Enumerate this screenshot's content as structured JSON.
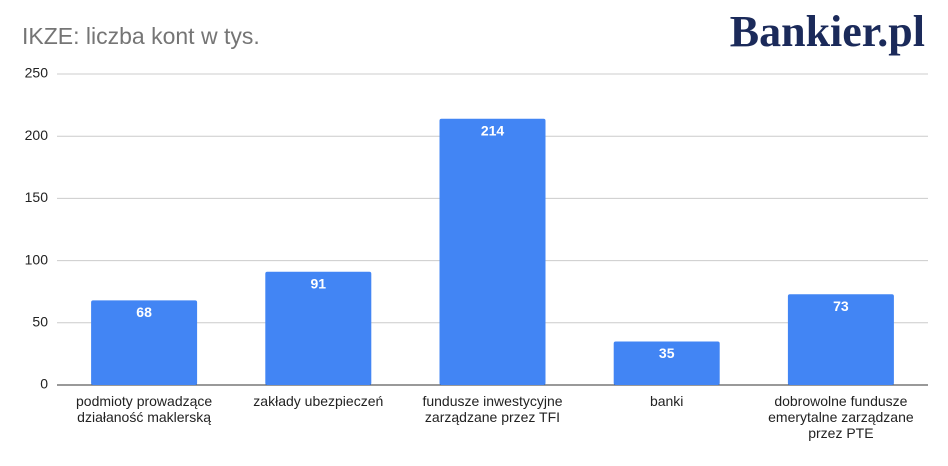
{
  "chart_data": {
    "type": "bar",
    "title": "IKZE: liczba kont w tys.",
    "brand": "Bankier.pl",
    "categories": [
      "podmioty prowadzące działaność maklerską",
      "zakłady ubezpieczeń",
      "fundusze inwestycyjne zarządzane przez TFI",
      "banki",
      "dobrowolne fundusze emerytalne zarządzane przez PTE"
    ],
    "values": [
      68,
      91,
      214,
      35,
      73
    ],
    "color": "#4285f4",
    "ylim": [
      0,
      250
    ],
    "yticks": [
      0,
      50,
      100,
      150,
      200,
      250
    ],
    "grid": true
  }
}
